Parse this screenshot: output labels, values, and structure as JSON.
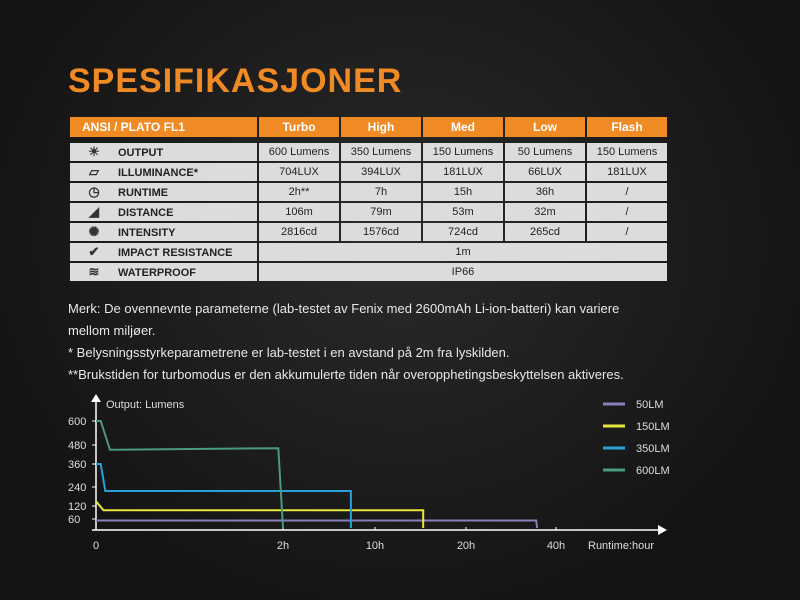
{
  "title": "SPESIFIKASJONER",
  "table": {
    "header": [
      "ANSI / PLATO FL1",
      "Turbo",
      "High",
      "Med",
      "Low",
      "Flash"
    ],
    "rows": [
      {
        "icon": "output-icon",
        "label": "OUTPUT",
        "values": [
          "600 Lumens",
          "350 Lumens",
          "150 Lumens",
          "50 Lumens",
          "150 Lumens"
        ]
      },
      {
        "icon": "illuminance-icon",
        "label": "ILLUMINANCE*",
        "values": [
          "704LUX",
          "394LUX",
          "181LUX",
          "66LUX",
          "181LUX"
        ]
      },
      {
        "icon": "clock-icon",
        "label": "RUNTIME",
        "values": [
          "2h**",
          "7h",
          "15h",
          "36h",
          "/"
        ]
      },
      {
        "icon": "distance-icon",
        "label": "DISTANCE",
        "values": [
          "106m",
          "79m",
          "53m",
          "32m",
          "/"
        ]
      },
      {
        "icon": "intensity-icon",
        "label": "INTENSITY",
        "values": [
          "2816cd",
          "1576cd",
          "724cd",
          "265cd",
          "/"
        ]
      },
      {
        "icon": "impact-icon",
        "label": "IMPACT RESISTANCE",
        "values": [
          "1m"
        ]
      },
      {
        "icon": "waterproof-icon",
        "label": "WATERPROOF",
        "values": [
          "IP66"
        ]
      }
    ]
  },
  "notes": [
    "Merk: De ovennevnte parameterne (lab-testet av Fenix med 2600mAh Li-ion-batteri) kan variere",
    "mellom miljøer.",
    "* Belysningsstyrkeparametrene er lab-testet i en avstand på 2m fra lyskilden.",
    "**Brukstiden for turbomodus er den akkumulerte tiden når overopphetingsbeskyttelsen aktiveres."
  ],
  "chart_data": {
    "type": "line",
    "ylabel": "Output: Lumens",
    "xlabel": "Runtime:hour",
    "yticks": [
      60,
      120,
      240,
      360,
      480,
      600
    ],
    "xticks": [
      "0",
      "2h",
      "10h",
      "20h",
      "40h"
    ],
    "xtick_values": [
      0,
      2,
      10,
      20,
      40
    ],
    "legend_position": "top-right",
    "series": [
      {
        "name": "50LM",
        "color": "#8a7fb8",
        "points": [
          [
            0,
            50
          ],
          [
            35.6,
            50
          ],
          [
            35.8,
            0
          ]
        ]
      },
      {
        "name": "150LM",
        "color": "#e6e640",
        "points": [
          [
            0,
            150
          ],
          [
            0.08,
            100
          ],
          [
            15.3,
            100
          ],
          [
            15.3,
            0
          ]
        ]
      },
      {
        "name": "350LM",
        "color": "#2aa0d8",
        "points": [
          [
            0,
            360
          ],
          [
            0.05,
            360
          ],
          [
            0.1,
            215
          ],
          [
            7.9,
            215
          ],
          [
            7.9,
            0
          ]
        ]
      },
      {
        "name": "600LM",
        "color": "#4a9a7e",
        "points": [
          [
            0,
            600
          ],
          [
            0.05,
            600
          ],
          [
            0.15,
            450
          ],
          [
            1.95,
            460
          ],
          [
            2,
            0
          ]
        ]
      }
    ]
  }
}
